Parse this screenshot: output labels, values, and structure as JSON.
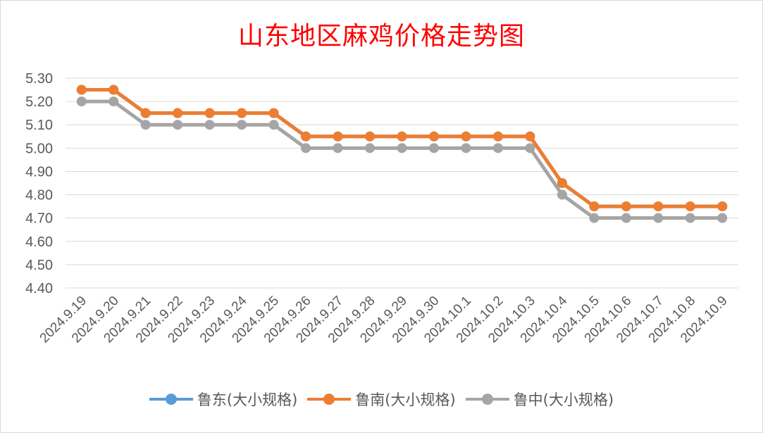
{
  "chart_data": {
    "type": "line",
    "title": "山东地区麻鸡价格走势图",
    "xlabel": "",
    "ylabel": "",
    "ylim": [
      4.4,
      5.3
    ],
    "yticks": [
      "5.30",
      "5.20",
      "5.10",
      "5.00",
      "4.90",
      "4.80",
      "4.70",
      "4.60",
      "4.50",
      "4.40"
    ],
    "grid": true,
    "legend_position": "bottom",
    "categories": [
      "2024.9.19",
      "2024.9.20",
      "2024.9.21",
      "2024.9.22",
      "2024.9.23",
      "2024.9.24",
      "2024.9.25",
      "2024.9.26",
      "2024.9.27",
      "2024.9.28",
      "2024.9.29",
      "2024.9.30",
      "2024.10.1",
      "2024.10.2",
      "2024.10.3",
      "2024.10.4",
      "2024.10.5",
      "2024.10.6",
      "2024.10.7",
      "2024.10.8",
      "2024.10.9"
    ],
    "series": [
      {
        "name": "鲁东(大小规格)",
        "color": "#5b9bd5",
        "values": [
          5.25,
          5.25,
          5.15,
          5.15,
          5.15,
          5.15,
          5.15,
          5.05,
          5.05,
          5.05,
          5.05,
          5.05,
          5.05,
          5.05,
          5.05,
          4.85,
          4.75,
          4.75,
          4.75,
          4.75,
          4.75
        ]
      },
      {
        "name": "鲁南(大小规格)",
        "color": "#ed7d31",
        "values": [
          5.25,
          5.25,
          5.15,
          5.15,
          5.15,
          5.15,
          5.15,
          5.05,
          5.05,
          5.05,
          5.05,
          5.05,
          5.05,
          5.05,
          5.05,
          4.85,
          4.75,
          4.75,
          4.75,
          4.75,
          4.75
        ]
      },
      {
        "name": "鲁中(大小规格)",
        "color": "#a5a5a5",
        "values": [
          5.2,
          5.2,
          5.1,
          5.1,
          5.1,
          5.1,
          5.1,
          5.0,
          5.0,
          5.0,
          5.0,
          5.0,
          5.0,
          5.0,
          5.0,
          4.8,
          4.7,
          4.7,
          4.7,
          4.7,
          4.7
        ]
      }
    ]
  }
}
